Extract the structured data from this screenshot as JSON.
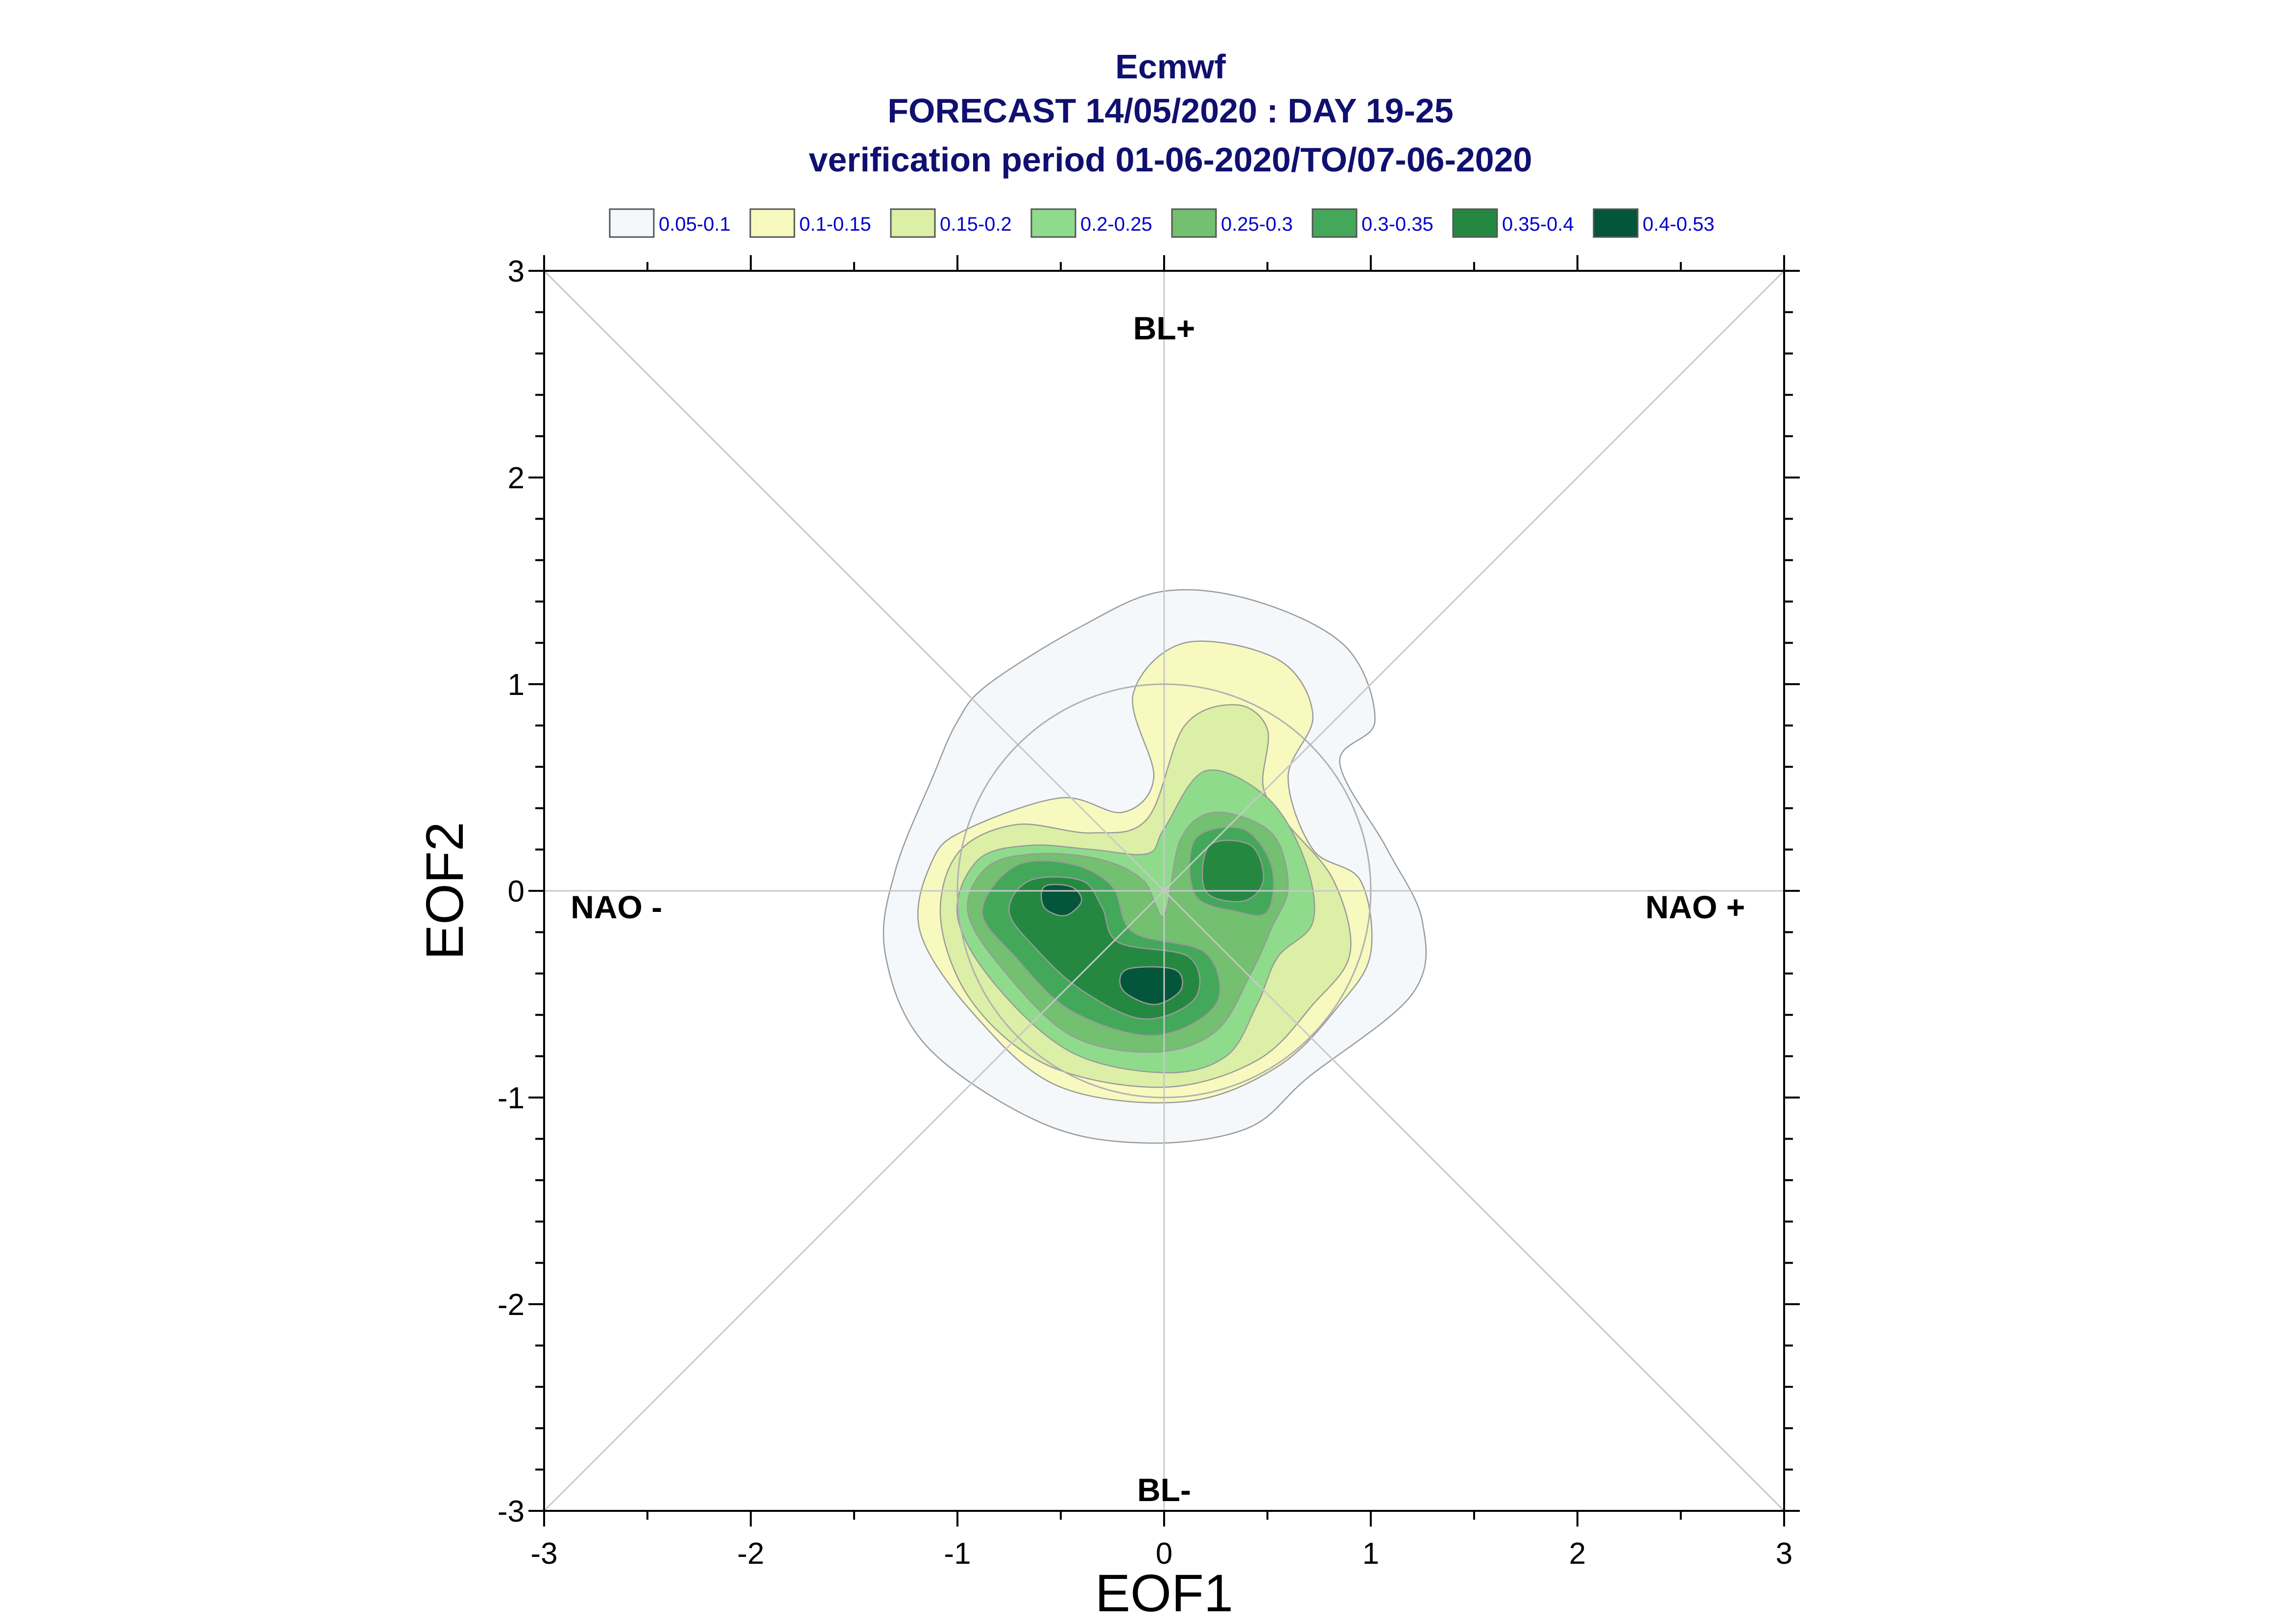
{
  "chart_data": {
    "type": "contour",
    "title_lines": [
      "Ecmwf",
      "FORECAST 14/05/2020 : DAY 19-25",
      "verification period 01-06-2020/TO/07-06-2020"
    ],
    "xlabel": "EOF1",
    "ylabel": "EOF2",
    "xlim": [
      -3,
      3
    ],
    "ylim": [
      -3,
      3
    ],
    "xticks": [
      -3,
      -2,
      -1,
      0,
      1,
      2,
      3
    ],
    "yticks": [
      -3,
      -2,
      -1,
      0,
      1,
      2,
      3
    ],
    "xtick_labels": [
      "-3",
      "-2",
      "-1",
      "0",
      "1",
      "2",
      "3"
    ],
    "ytick_labels": [
      "-3",
      "-2",
      "-1",
      "0",
      "1",
      "2",
      "3"
    ],
    "regime_labels": [
      {
        "text": "BL+",
        "x": 0,
        "y": 2.72
      },
      {
        "text": "BL-",
        "x": 0,
        "y": -2.9
      },
      {
        "text": "NAO -",
        "x": -2.65,
        "y": -0.08
      },
      {
        "text": "NAO +",
        "x": 2.57,
        "y": -0.08
      }
    ],
    "reference_circle_radius": 1,
    "diagonals": true,
    "legend_position": "top",
    "legend": [
      {
        "label": "0.05-0.1",
        "color": "#f4f8fb"
      },
      {
        "label": "0.1-0.15",
        "color": "#f7f9be"
      },
      {
        "label": "0.15-0.2",
        "color": "#dcefa6"
      },
      {
        "label": "0.2-0.25",
        "color": "#8fdb8c"
      },
      {
        "label": "0.25-0.3",
        "color": "#72c070"
      },
      {
        "label": "0.3-0.35",
        "color": "#44a85a"
      },
      {
        "label": "0.35-0.4",
        "color": "#258841"
      },
      {
        "label": "0.4-0.53",
        "color": "#04563a"
      }
    ],
    "density_levels": [
      {
        "range": "0.05-0.1",
        "color": "#f4f8fb",
        "polygons": [
          [
            [
              -0.85,
              1.0
            ],
            [
              -0.4,
              1.28
            ],
            [
              0,
              1.45
            ],
            [
              0.45,
              1.4
            ],
            [
              0.88,
              1.18
            ],
            [
              1.02,
              0.82
            ],
            [
              0.85,
              0.62
            ],
            [
              1.08,
              0.2
            ],
            [
              1.25,
              -0.15
            ],
            [
              1.2,
              -0.5
            ],
            [
              0.7,
              -0.9
            ],
            [
              0.4,
              -1.15
            ],
            [
              -0.1,
              -1.22
            ],
            [
              -0.6,
              -1.12
            ],
            [
              -1.15,
              -0.75
            ],
            [
              -1.35,
              -0.3
            ],
            [
              -1.3,
              0.1
            ],
            [
              -1.12,
              0.55
            ],
            [
              -1.0,
              0.82
            ]
          ]
        ]
      },
      {
        "range": "0.1-0.15",
        "color": "#f7f9be",
        "polygons": [
          [
            [
              -0.5,
              0.45
            ],
            [
              -0.2,
              0.38
            ],
            [
              -0.05,
              0.55
            ],
            [
              -0.15,
              0.95
            ],
            [
              0.1,
              1.2
            ],
            [
              0.55,
              1.12
            ],
            [
              0.72,
              0.85
            ],
            [
              0.6,
              0.55
            ],
            [
              0.72,
              0.2
            ],
            [
              0.95,
              0.05
            ],
            [
              1.0,
              -0.3
            ],
            [
              0.85,
              -0.55
            ],
            [
              0.55,
              -0.85
            ],
            [
              0.1,
              -1.02
            ],
            [
              -0.5,
              -0.95
            ],
            [
              -0.9,
              -0.62
            ],
            [
              -1.18,
              -0.2
            ],
            [
              -1.12,
              0.15
            ],
            [
              -0.95,
              0.3
            ]
          ]
        ]
      },
      {
        "range": "0.15-0.2",
        "color": "#dcefa6",
        "polygons": [
          [
            [
              0.1,
              0.8
            ],
            [
              0.35,
              0.9
            ],
            [
              0.5,
              0.78
            ],
            [
              0.48,
              0.5
            ],
            [
              0.6,
              0.32
            ],
            [
              0.82,
              0.05
            ],
            [
              0.9,
              -0.3
            ],
            [
              0.72,
              -0.55
            ],
            [
              0.45,
              -0.82
            ],
            [
              0.0,
              -0.95
            ],
            [
              -0.55,
              -0.85
            ],
            [
              -0.92,
              -0.55
            ],
            [
              -1.08,
              -0.15
            ],
            [
              -1.0,
              0.18
            ],
            [
              -0.72,
              0.32
            ],
            [
              -0.35,
              0.28
            ],
            [
              -0.08,
              0.35
            ]
          ]
        ]
      },
      {
        "range": "0.2-0.25",
        "color": "#8fdb8c",
        "polygons": [
          [
            [
              0.0,
              0.3
            ],
            [
              0.2,
              0.58
            ],
            [
              0.5,
              0.45
            ],
            [
              0.68,
              0.15
            ],
            [
              0.72,
              -0.15
            ],
            [
              0.55,
              -0.32
            ],
            [
              0.45,
              -0.55
            ],
            [
              0.3,
              -0.8
            ],
            [
              0.0,
              -0.88
            ],
            [
              -0.45,
              -0.78
            ],
            [
              -0.82,
              -0.45
            ],
            [
              -1.0,
              -0.12
            ],
            [
              -0.9,
              0.15
            ],
            [
              -0.65,
              0.22
            ],
            [
              -0.35,
              0.2
            ],
            [
              -0.08,
              0.18
            ]
          ]
        ]
      },
      {
        "range": "0.25-0.3",
        "color": "#72c070",
        "polygons": [
          [
            [
              0.08,
              0.25
            ],
            [
              0.25,
              0.38
            ],
            [
              0.52,
              0.28
            ],
            [
              0.6,
              0.02
            ],
            [
              0.52,
              -0.18
            ],
            [
              0.42,
              -0.4
            ],
            [
              0.25,
              -0.68
            ],
            [
              -0.05,
              -0.78
            ],
            [
              -0.45,
              -0.7
            ],
            [
              -0.78,
              -0.38
            ],
            [
              -0.95,
              -0.1
            ],
            [
              -0.85,
              0.12
            ],
            [
              -0.6,
              0.18
            ],
            [
              -0.3,
              0.15
            ],
            [
              -0.1,
              0.05
            ],
            [
              0.0,
              -0.12
            ]
          ]
        ]
      },
      {
        "range": "0.3-0.35",
        "color": "#44a85a",
        "polygons": [
          [
            [
              0.15,
              0.25
            ],
            [
              0.38,
              0.3
            ],
            [
              0.52,
              0.12
            ],
            [
              0.5,
              -0.1
            ],
            [
              0.35,
              -0.1
            ],
            [
              0.15,
              -0.02
            ]
          ],
          [
            [
              -0.72,
              0.12
            ],
            [
              -0.45,
              0.13
            ],
            [
              -0.25,
              0.02
            ],
            [
              -0.15,
              -0.2
            ],
            [
              0.2,
              -0.3
            ],
            [
              0.25,
              -0.55
            ],
            [
              -0.05,
              -0.7
            ],
            [
              -0.45,
              -0.58
            ],
            [
              -0.72,
              -0.32
            ],
            [
              -0.88,
              -0.1
            ]
          ]
        ]
      },
      {
        "range": "0.35-0.4",
        "color": "#258841",
        "polygons": [
          [
            [
              0.22,
              0.22
            ],
            [
              0.42,
              0.22
            ],
            [
              0.48,
              0.05
            ],
            [
              0.38,
              -0.05
            ],
            [
              0.2,
              0.0
            ]
          ],
          [
            [
              -0.65,
              0.05
            ],
            [
              -0.4,
              0.05
            ],
            [
              -0.3,
              -0.08
            ],
            [
              -0.22,
              -0.25
            ],
            [
              0.12,
              -0.32
            ],
            [
              0.15,
              -0.52
            ],
            [
              -0.1,
              -0.62
            ],
            [
              -0.4,
              -0.48
            ],
            [
              -0.62,
              -0.28
            ],
            [
              -0.75,
              -0.1
            ]
          ]
        ]
      },
      {
        "range": "0.4-0.53",
        "color": "#04563a",
        "polygons": [
          [
            [
              -0.58,
              0.02
            ],
            [
              -0.45,
              0.02
            ],
            [
              -0.4,
              -0.05
            ],
            [
              -0.48,
              -0.12
            ],
            [
              -0.58,
              -0.08
            ]
          ],
          [
            [
              -0.18,
              -0.38
            ],
            [
              0.05,
              -0.38
            ],
            [
              0.08,
              -0.48
            ],
            [
              -0.05,
              -0.55
            ],
            [
              -0.2,
              -0.48
            ]
          ]
        ]
      }
    ]
  }
}
